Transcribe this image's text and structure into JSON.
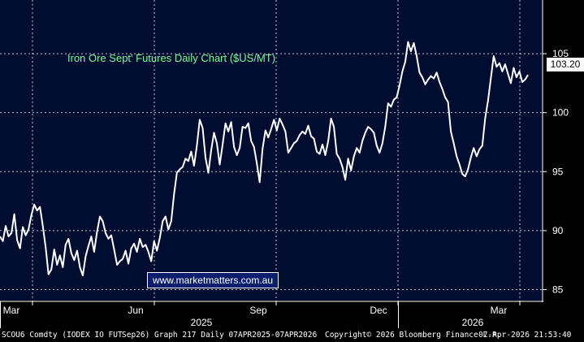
{
  "chart_data": {
    "type": "line",
    "title": "Iron Ore Sept' Futures Daily Chart ($US/MT)",
    "ylim": [
      84,
      109
    ],
    "y_ticks": [
      85,
      90,
      95,
      100,
      105
    ],
    "x_tick_labels": [
      "Mar",
      "Jun",
      "Sep",
      "Dec",
      "Mar"
    ],
    "year_labels": [
      "2025",
      "2026"
    ],
    "last_value": "103.20",
    "grid": true,
    "line_color": "#ffffff",
    "series": [
      {
        "values": [
          89.5,
          89.1,
          90.4,
          89.5,
          89.8,
          91.4,
          89.2,
          88.5,
          90.3,
          89.6,
          90.1,
          91.3,
          92.2,
          91.7,
          92.0,
          90.4,
          88.6,
          86.3,
          86.7,
          88.4,
          87.1,
          87.9,
          86.9,
          88.8,
          89.3,
          88.1,
          87.5,
          88.3,
          86.9,
          86.2,
          87.8,
          88.7,
          89.5,
          88.2,
          89.9,
          91.2,
          90.8,
          89.8,
          89.3,
          89.6,
          88.4,
          87.1,
          87.4,
          87.6,
          88.3,
          87.2,
          88.5,
          88.9,
          88.2,
          89.3,
          88.6,
          88.8,
          88.2,
          87.4,
          89.1,
          88.3,
          89.4,
          90.8,
          91.2,
          90.1,
          90.8,
          93.1,
          94.9,
          95.2,
          95.4,
          96.1,
          95.9,
          96.7,
          95.5,
          97.2,
          99.4,
          98.7,
          96.2,
          94.9,
          96.8,
          98.3,
          97.4,
          95.6,
          97.3,
          99.1,
          98.4,
          99.2,
          97.1,
          96.4,
          97.0,
          98.8,
          98.7,
          99.1,
          97.6,
          97.1,
          95.7,
          94.1,
          96.9,
          98.5,
          97.9,
          98.6,
          99.4,
          98.5,
          99.5,
          99.0,
          98.4,
          96.6,
          97.0,
          97.4,
          97.6,
          98.1,
          98.4,
          98.2,
          98.9,
          98.0,
          97.8,
          96.7,
          96.5,
          97.3,
          96.4,
          97.6,
          99.5,
          98.8,
          96.5,
          96.1,
          95.4,
          94.3,
          96.1,
          95.1,
          96.3,
          97.0,
          96.6,
          97.6,
          98.3,
          98.8,
          98.6,
          98.3,
          97.2,
          96.6,
          97.4,
          98.8,
          100.8,
          100.5,
          101.1,
          101.3,
          102.3,
          103.5,
          104.3,
          106.0,
          105.2,
          105.9,
          104.8,
          103.4,
          103.0,
          102.4,
          102.8,
          103.1,
          102.9,
          103.4,
          102.6,
          102.0,
          101.3,
          100.9,
          98.4,
          97.4,
          96.3,
          95.6,
          94.8,
          94.6,
          95.2,
          96.2,
          97.0,
          96.3,
          96.9,
          97.2,
          99.5,
          101.0,
          102.9,
          104.8,
          103.9,
          104.2,
          103.5,
          104.1,
          103.3,
          102.5,
          103.8,
          103.0,
          103.5,
          102.6,
          102.8,
          103.2
        ]
      }
    ]
  },
  "watermark": "www.marketmatters.com.au",
  "footer": {
    "left": "SCOU6 Comdty (IODEX IO FUT",
    "mid": "Sep26) Graph 217 Daily 07APR2025-07APR2026",
    "copyright": "Copyright© 2026 Bloomberg Finance L.P.",
    "timestamp": "07-Apr-2026 21:53:40"
  }
}
